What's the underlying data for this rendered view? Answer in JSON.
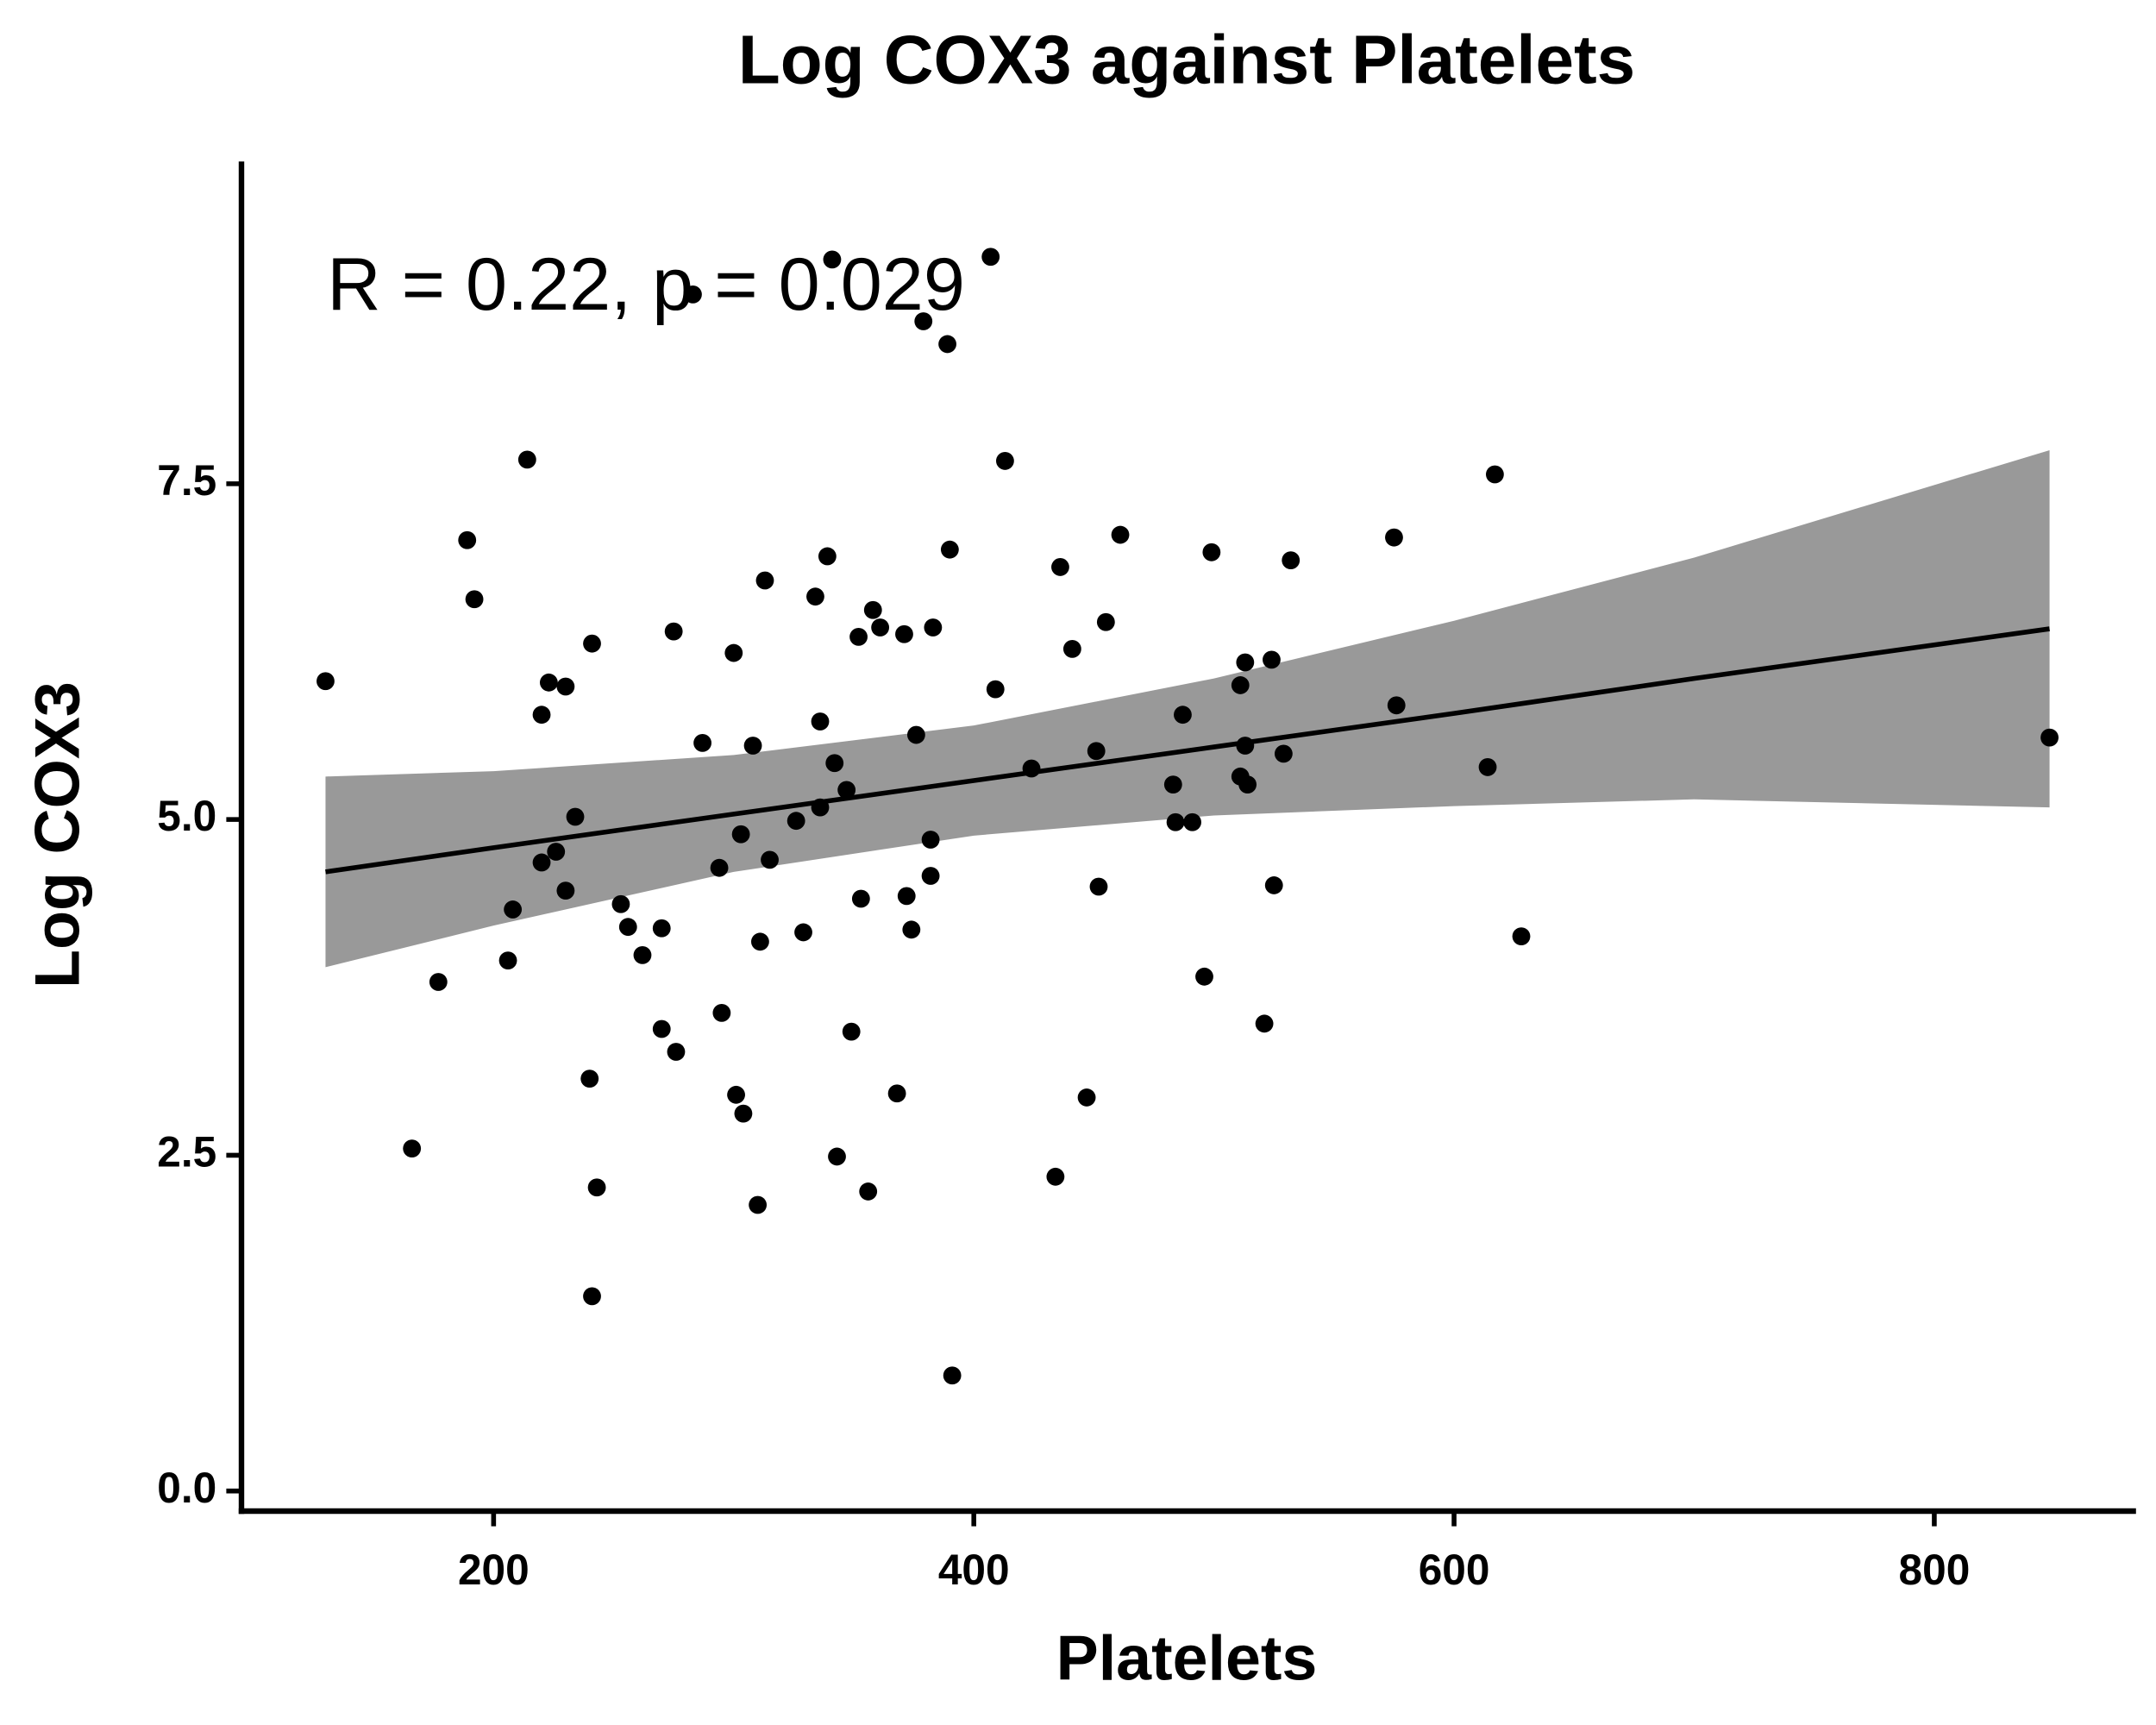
{
  "chart_data": {
    "type": "scatter",
    "title": "Log COX3 against Platelets",
    "x_label": "Platelets",
    "y_label": "Log COX3",
    "annotation": "R = 0.22, p = 0.029",
    "xlim": [
      95,
      884
    ],
    "ylim": [
      -0.15,
      9.9
    ],
    "xticks": [
      200,
      400,
      600,
      800
    ],
    "yticks": [
      {
        "value": 0,
        "label": "0.0"
      },
      2.5,
      {
        "value": 5,
        "label": "5.0"
      },
      7.5
    ],
    "color": "#000000",
    "band_color": "#999999",
    "x": [
      130,
      166,
      177,
      189,
      192,
      214,
      206,
      208,
      220,
      223,
      220,
      226,
      230,
      230,
      234,
      240,
      241,
      241,
      243,
      253,
      256,
      262,
      270,
      270,
      275,
      276,
      283,
      287,
      294,
      295,
      300,
      301,
      303,
      304,
      308,
      310,
      311,
      313,
      315,
      326,
      329,
      334,
      336,
      336,
      339,
      341,
      342,
      343,
      347,
      349,
      352,
      353,
      356,
      358,
      361,
      368,
      371,
      372,
      374,
      376,
      379,
      382,
      382,
      383,
      389,
      390,
      391,
      407,
      409,
      413,
      424,
      434,
      436,
      441,
      447,
      451,
      452,
      455,
      461,
      483,
      484,
      487,
      491,
      496,
      499,
      511,
      511,
      513,
      513,
      514,
      521,
      524,
      525,
      529,
      532,
      575,
      576,
      614,
      617,
      628,
      848
    ],
    "y": [
      6.03,
      2.55,
      3.79,
      7.08,
      6.64,
      7.68,
      3.95,
      4.33,
      5.78,
      6.02,
      4.68,
      4.76,
      5.99,
      4.47,
      5.02,
      3.07,
      6.31,
      1.45,
      2.26,
      4.37,
      4.2,
      3.99,
      3.44,
      4.19,
      6.4,
      3.27,
      8.91,
      5.57,
      4.64,
      3.56,
      6.24,
      2.95,
      4.89,
      2.81,
      5.55,
      2.13,
      4.09,
      6.78,
      4.7,
      4.99,
      4.16,
      6.66,
      5.73,
      5.09,
      6.96,
      9.17,
      5.42,
      2.49,
      5.22,
      3.42,
      6.36,
      4.41,
      2.23,
      6.56,
      6.43,
      2.96,
      6.38,
      4.43,
      4.18,
      5.63,
      8.71,
      4.85,
      4.58,
      6.43,
      8.54,
      7.01,
      0.86,
      9.19,
      5.97,
      7.67,
      5.38,
      2.34,
      6.88,
      6.27,
      2.93,
      5.51,
      4.5,
      6.47,
      7.12,
      5.26,
      4.98,
      5.78,
      4.98,
      3.83,
      6.99,
      6.0,
      5.32,
      5.55,
      6.17,
      5.26,
      3.48,
      6.19,
      4.51,
      5.49,
      6.93,
      7.1,
      5.85,
      5.39,
      7.57,
      4.13,
      5.61
    ],
    "fit": {
      "x": [
        130,
        200,
        300,
        400,
        500,
        600,
        700,
        848
      ],
      "y": [
        4.61,
        4.79,
        5.04,
        5.29,
        5.54,
        5.79,
        6.05,
        6.42
      ],
      "lower": [
        3.9,
        4.21,
        4.61,
        4.88,
        5.03,
        5.1,
        5.15,
        5.09
      ],
      "upper": [
        5.32,
        5.36,
        5.48,
        5.7,
        6.05,
        6.48,
        6.95,
        7.75
      ]
    }
  }
}
